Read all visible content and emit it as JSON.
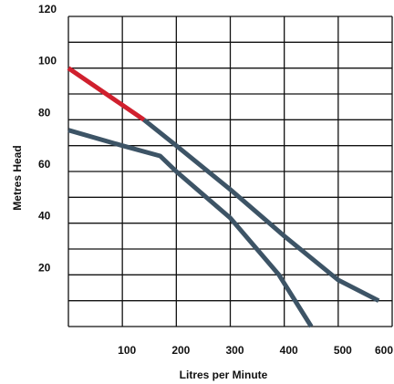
{
  "chart_data": {
    "type": "line",
    "xlabel": "Litres per Minute",
    "ylabel": "Metres Head",
    "xlim": [
      0,
      600
    ],
    "ylim": [
      0,
      120
    ],
    "x_ticks": [
      100,
      200,
      300,
      400,
      500,
      600
    ],
    "x_tick_labels": [
      "100",
      "200",
      "300",
      "400",
      "500",
      "600"
    ],
    "y_ticks": [
      20,
      40,
      60,
      80,
      100,
      120
    ],
    "y_tick_labels": [
      "20",
      "40",
      "60",
      "80",
      "100",
      "120"
    ],
    "grid_x": [
      0,
      100,
      200,
      300,
      400,
      500,
      600
    ],
    "grid_y": [
      0,
      10,
      20,
      30,
      40,
      50,
      60,
      70,
      80,
      90,
      100,
      110,
      120
    ],
    "grid": true,
    "series": [
      {
        "color": "#d0202e",
        "points": [
          [
            0,
            100
          ],
          [
            140,
            80
          ]
        ]
      },
      {
        "color": "#3d5466",
        "points": [
          [
            140,
            80
          ],
          [
            200,
            70
          ],
          [
            300,
            53
          ],
          [
            400,
            35
          ],
          [
            500,
            18
          ],
          [
            575,
            10
          ]
        ]
      },
      {
        "color": "#3d5466",
        "points": [
          [
            0,
            76
          ],
          [
            100,
            70
          ],
          [
            170,
            66
          ],
          [
            200,
            60
          ],
          [
            300,
            42
          ],
          [
            390,
            20
          ],
          [
            450,
            0
          ]
        ]
      }
    ]
  }
}
